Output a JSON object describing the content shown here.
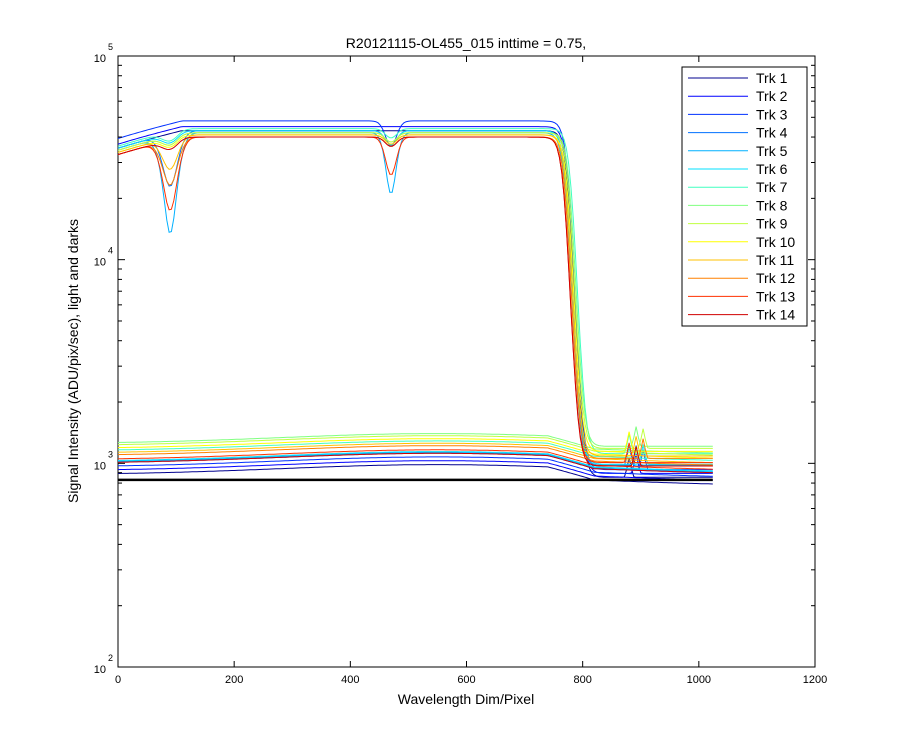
{
  "chart_data": {
    "type": "line",
    "title": "R20121115-OL455_015 inttime = 0.75,",
    "xlabel": "Wavelength Dim/Pixel",
    "ylabel": "Signal Intensity (ADU/pix/sec), light and darks",
    "xlim": [
      0,
      1200
    ],
    "ylim": [
      100,
      100000
    ],
    "yscale": "log",
    "grid": false,
    "legend_position": "top-right",
    "xticks": [
      "0",
      "200",
      "400",
      "600",
      "800",
      "1000",
      "1200"
    ],
    "yticks": [
      {
        "base": "10",
        "exp": "2",
        "value": 100
      },
      {
        "base": "10",
        "exp": "3",
        "value": 1000
      },
      {
        "base": "10",
        "exp": "4",
        "value": 10000
      },
      {
        "base": "10",
        "exp": "5",
        "value": 100000
      }
    ],
    "series": [
      {
        "name": "Trk 1",
        "color": "#00008f",
        "light": 43000,
        "dark": 880,
        "dip1": 1.0,
        "dip2": 1.0,
        "drop": 775
      },
      {
        "name": "Trk 2",
        "color": "#0000ff",
        "light": 45000,
        "dark": 920,
        "dip1": 1.0,
        "dip2": 1.0,
        "drop": 775
      },
      {
        "name": "Trk 3",
        "color": "#0030ff",
        "light": 48000,
        "dark": 960,
        "dip1": 1.0,
        "dip2": 0.75,
        "drop": 775
      },
      {
        "name": "Trk 4",
        "color": "#0070ff",
        "light": 43000,
        "dark": 1000,
        "dip1": 0.55,
        "dip2": 0.85,
        "drop": 772
      },
      {
        "name": "Trk 5",
        "color": "#00b0ff",
        "light": 42000,
        "dark": 1010,
        "dip1": 0.33,
        "dip2": 0.5,
        "drop": 770
      },
      {
        "name": "Trk 6",
        "color": "#00e0ff",
        "light": 43000,
        "dark": 1020,
        "dip1": 0.9,
        "dip2": 0.85,
        "drop": 772
      },
      {
        "name": "Trk 7",
        "color": "#40ffc0",
        "light": 44000,
        "dark": 1150,
        "dip1": 0.9,
        "dip2": 0.9,
        "drop": 780
      },
      {
        "name": "Trk 8",
        "color": "#80ff80",
        "light": 42000,
        "dark": 1250,
        "dip1": 0.9,
        "dip2": 0.9,
        "drop": 778
      },
      {
        "name": "Trk 9",
        "color": "#c0ff40",
        "light": 42000,
        "dark": 1220,
        "dip1": 0.9,
        "dip2": 0.9,
        "drop": 776
      },
      {
        "name": "Trk 10",
        "color": "#ffff00",
        "light": 41000,
        "dark": 1180,
        "dip1": 0.9,
        "dip2": 0.9,
        "drop": 774
      },
      {
        "name": "Trk 11",
        "color": "#ffc000",
        "light": 41000,
        "dark": 1120,
        "dip1": 0.7,
        "dip2": 0.9,
        "drop": 772
      },
      {
        "name": "Trk 12",
        "color": "#ff8000",
        "light": 40000,
        "dark": 1090,
        "dip1": 0.6,
        "dip2": 0.9,
        "drop": 770
      },
      {
        "name": "Trk 13",
        "color": "#ff3000",
        "light": 40000,
        "dark": 1040,
        "dip1": 0.45,
        "dip2": 0.65,
        "drop": 768
      },
      {
        "name": "Trk 14",
        "color": "#d00000",
        "light": 40000,
        "dark": 1000,
        "dip1": 0.9,
        "dip2": 0.9,
        "drop": 768
      }
    ],
    "dark_level": 830
  }
}
